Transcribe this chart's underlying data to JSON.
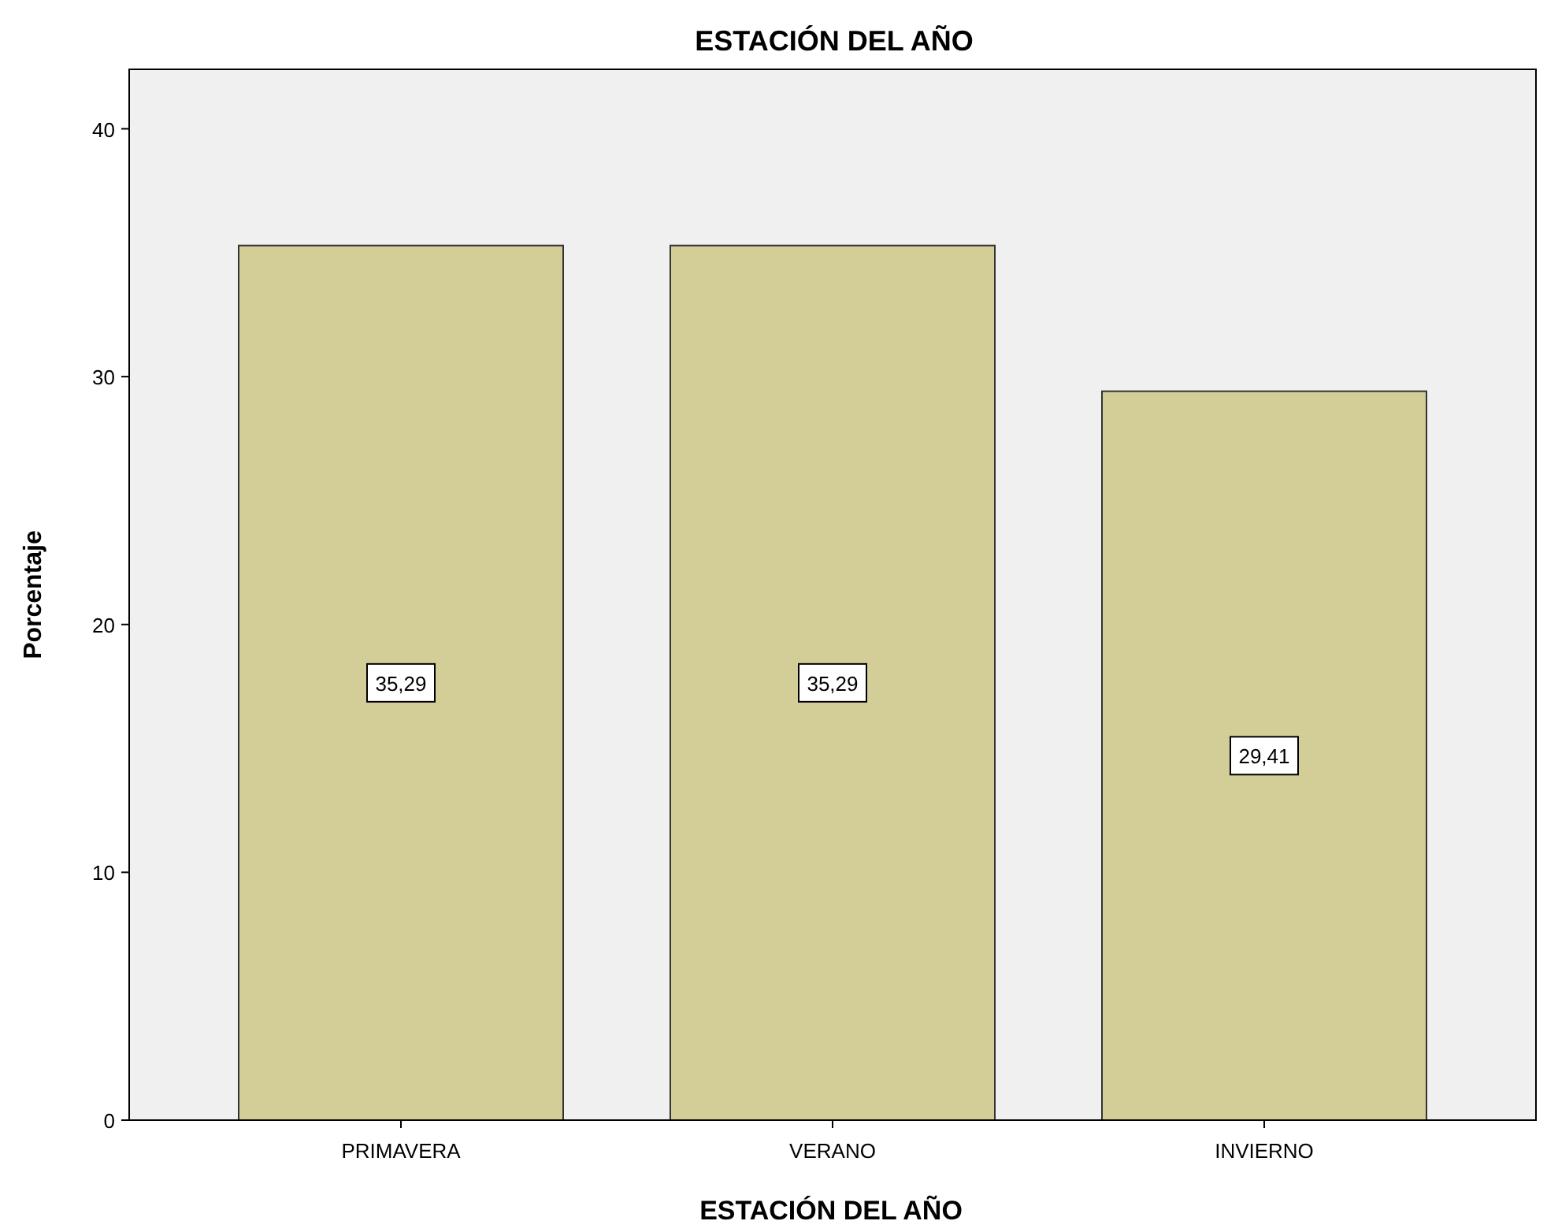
{
  "chart_data": {
    "type": "bar",
    "title": "ESTACIÓN DEL AÑO",
    "xlabel": "ESTACIÓN DEL AÑO",
    "ylabel": "Porcentaje",
    "categories": [
      "PRIMAVERA",
      "VERANO",
      "INVIERNO"
    ],
    "values": [
      35.29,
      35.29,
      29.41
    ],
    "value_labels": [
      "35,29",
      "35,29",
      "29,41"
    ],
    "color": "#d3ce97",
    "ylim": [
      0,
      42.4
    ],
    "yticks": [
      0,
      10,
      20,
      30,
      40
    ],
    "grid": false
  }
}
